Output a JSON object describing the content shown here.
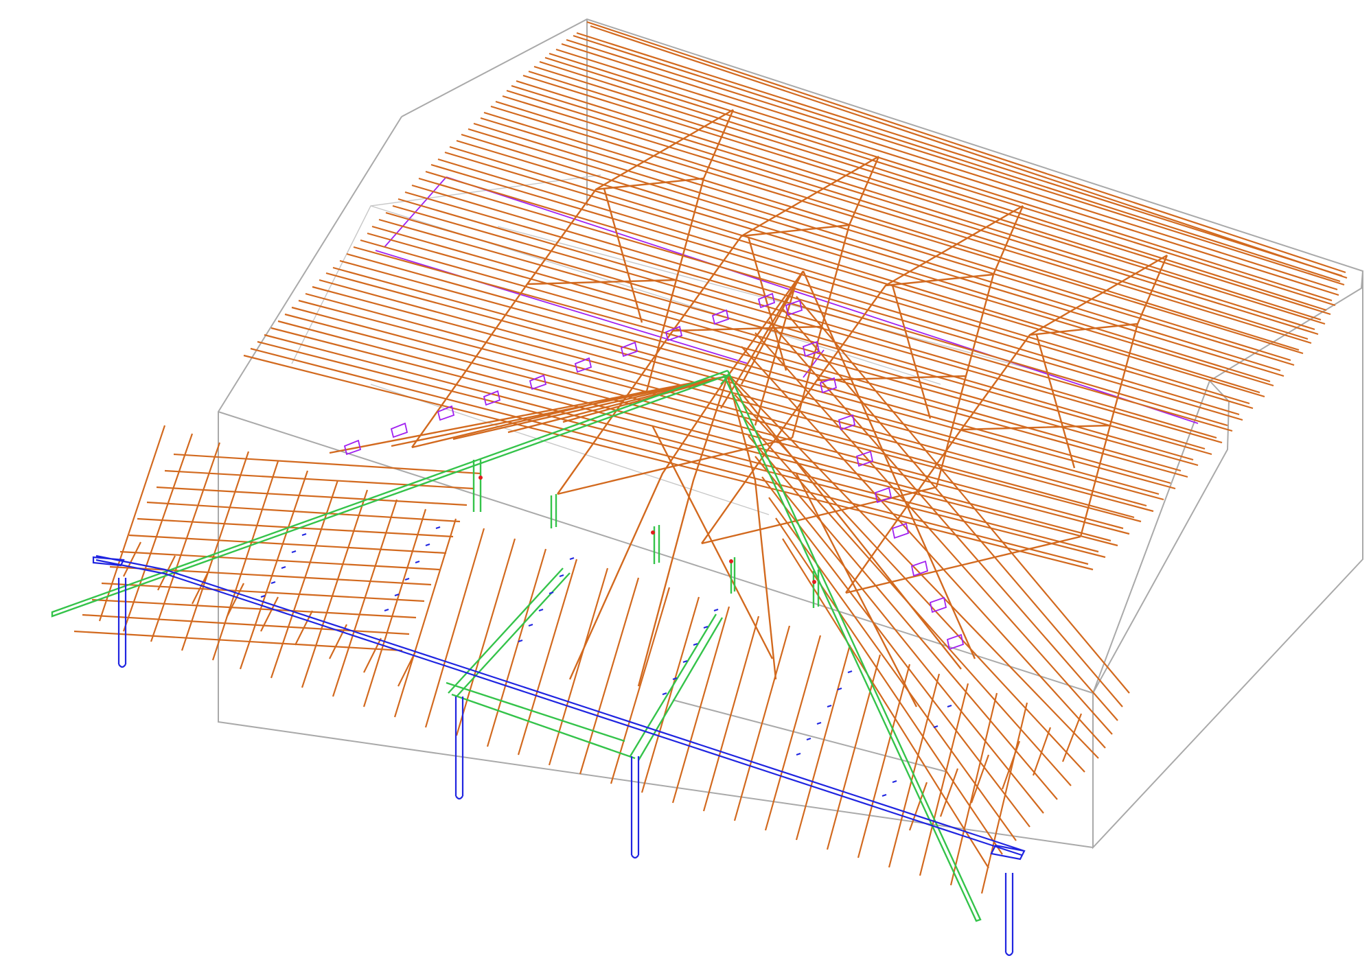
{
  "diagram": {
    "type": "3d-roof-framing-wireframe",
    "colors": {
      "background": "#ffffff",
      "timber": "#d2691e",
      "hip_members": "#34c34a",
      "steel_posts_and_anchors": "#1f24e0",
      "purple_marks": "#a020f0",
      "building_outline": "#a9a9a9",
      "connector_marks": "#e11d1d"
    },
    "components": [
      "building-outline",
      "main-roof-rafters",
      "trusses",
      "left-hip-rafter",
      "right-hip-rafter",
      "front-jack-rafters",
      "right-jack-rafters",
      "steel-posts",
      "eave-beam"
    ]
  }
}
